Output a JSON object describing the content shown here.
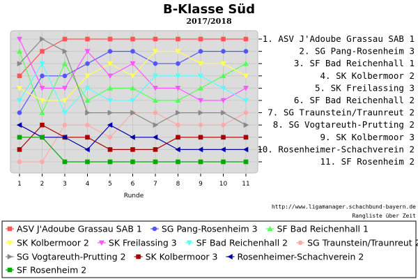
{
  "chart_data": {
    "type": "line",
    "title": "B-Klasse Süd",
    "subtitle": "2017/2018",
    "xlabel": "Runde",
    "ylabel": "",
    "x": [
      1,
      2,
      3,
      4,
      5,
      6,
      7,
      8,
      9,
      10,
      11
    ],
    "ylim": [
      1,
      11
    ],
    "y_inverted": true,
    "rank_labels": [
      "1. ASV J'Adoube Grassau SAB 1",
      "2. SG Pang-Rosenheim 3",
      "3. SF Bad Reichenhall 1",
      "4. SK Kolbermoor 2",
      "5. SK Freilassing 3",
      "6. SF Bad Reichenhall 2",
      "7. SG Traunstein/Traunreut 2",
      "8. SG Vogtareuth-Prutting 2",
      "9. SK Kolbermoor 3",
      "10. Rosenheimer-Schachverein 2",
      "11. SF Rosenheim 2"
    ],
    "grid": true,
    "legend_position": "bottom",
    "footer_url": "http://www.ligamanager.schachbund-bayern.de",
    "footer_note": "Rangliste über Zeit",
    "series": [
      {
        "name": "ASV J'Adoube Grassau SAB 1",
        "color": "#ff5555",
        "marker": "square",
        "values": [
          4,
          2,
          1,
          1,
          1,
          1,
          1,
          1,
          1,
          1,
          1
        ]
      },
      {
        "name": "SG Pang-Rosenheim 3",
        "color": "#5555ff",
        "marker": "circle",
        "values": [
          7,
          4,
          4,
          3,
          2,
          2,
          3,
          3,
          2,
          2,
          2
        ]
      },
      {
        "name": "SF Bad Reichenhall 1",
        "color": "#55ff55",
        "marker": "triangle-up",
        "values": [
          2,
          7,
          3,
          6,
          5,
          5,
          6,
          6,
          5,
          4,
          3
        ]
      },
      {
        "name": "SK Kolbermoor 2",
        "color": "#ffff55",
        "marker": "triangle-down",
        "values": [
          5,
          6,
          6,
          4,
          3,
          4,
          2,
          2,
          3,
          3,
          4
        ]
      },
      {
        "name": "SK Freilassing 3",
        "color": "#ff55ff",
        "marker": "triangle-down",
        "values": [
          1,
          5,
          5,
          2,
          4,
          3,
          5,
          5,
          6,
          6,
          5
        ]
      },
      {
        "name": "SF Bad Reichenhall 2",
        "color": "#55ffff",
        "marker": "triangle-down",
        "values": [
          6,
          3,
          7,
          5,
          6,
          6,
          4,
          4,
          4,
          5,
          6
        ]
      },
      {
        "name": "SG Traunstein/Traunreut 2",
        "color": "#ffaaaa",
        "marker": "circle",
        "values": [
          11,
          11,
          8,
          8,
          9,
          7,
          7,
          8,
          8,
          8,
          7
        ]
      },
      {
        "name": "SG Vogtareuth-Prutting 2",
        "color": "#888888",
        "marker": "triangle-right",
        "values": [
          3,
          1,
          2,
          7,
          7,
          7,
          8,
          7,
          7,
          7,
          8
        ]
      },
      {
        "name": "SK Kolbermoor 3",
        "color": "#aa0000",
        "marker": "square",
        "values": [
          10,
          8,
          9,
          9,
          10,
          10,
          10,
          9,
          9,
          9,
          9
        ]
      },
      {
        "name": "Rosenheimer-Schachverein 2",
        "color": "#0000aa",
        "marker": "triangle-left",
        "values": [
          8,
          9,
          9,
          10,
          8,
          9,
          9,
          10,
          10,
          10,
          10
        ]
      },
      {
        "name": "SF Rosenheim 2",
        "color": "#00aa00",
        "marker": "square",
        "values": [
          9,
          9,
          11,
          11,
          11,
          11,
          11,
          11,
          11,
          11,
          11
        ]
      }
    ]
  }
}
